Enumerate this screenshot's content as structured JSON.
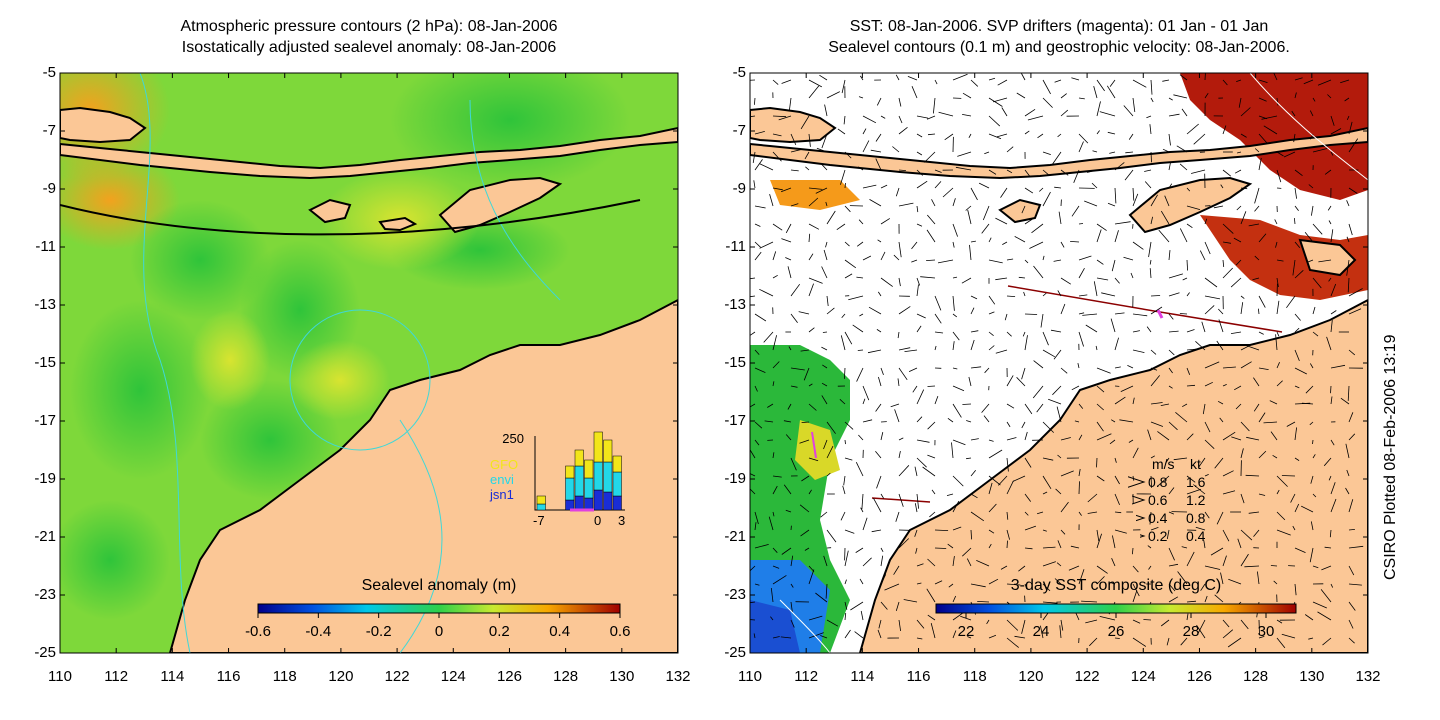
{
  "left_panel": {
    "title_line1": "Atmospheric pressure contours (2 hPa): 08-Jan-2006",
    "title_line2": "Isostatically adjusted sealevel anomaly: 08-Jan-2006",
    "colorbar": {
      "title": "Sealevel anomaly (m)",
      "ticks": [
        "-0.6",
        "-0.4",
        "-0.2",
        "0",
        "0.2",
        "0.4",
        "0.6"
      ]
    },
    "inset": {
      "y_tick_top": "250",
      "x_ticks": [
        "-7",
        "0",
        "3"
      ],
      "legend": [
        {
          "label": "GFO",
          "color": "#f2e51a"
        },
        {
          "label": "envi",
          "color": "#23d7e8"
        },
        {
          "label": "jsn1",
          "color": "#1a2dd6"
        }
      ]
    }
  },
  "right_panel": {
    "title_line1": "SST: 08-Jan-2006. SVP drifters (magenta): 01 Jan - 01 Jan",
    "title_line2": "Sealevel contours (0.1 m) and geostrophic velocity: 08-Jan-2006.",
    "colorbar": {
      "title": "3-day SST composite (deg C)",
      "ticks": [
        "22",
        "24",
        "26",
        "28",
        "30"
      ]
    },
    "velocity_legend": {
      "header_ms": "m/s",
      "header_kt": "kt",
      "rows": [
        {
          "ms": "0.8",
          "kt": "1.6"
        },
        {
          "ms": "0.6",
          "kt": "1.2"
        },
        {
          "ms": "0.4",
          "kt": "0.8"
        },
        {
          "ms": "0.2",
          "kt": "0.4"
        }
      ]
    }
  },
  "axes": {
    "y_ticks": [
      "-5",
      "-7",
      "-9",
      "-11",
      "-13",
      "-15",
      "-17",
      "-19",
      "-21",
      "-23",
      "-25"
    ],
    "x_ticks": [
      "110",
      "112",
      "114",
      "116",
      "118",
      "120",
      "122",
      "124",
      "126",
      "128",
      "130",
      "132"
    ]
  },
  "credit": "CSIRO Plotted 08-Feb-2006 13:19",
  "colors": {
    "land": "#fbc796",
    "sealevel_green": "#54d23a",
    "sealevel_yellow": "#b7e33a",
    "sst_warm": "#b31b0c"
  }
}
